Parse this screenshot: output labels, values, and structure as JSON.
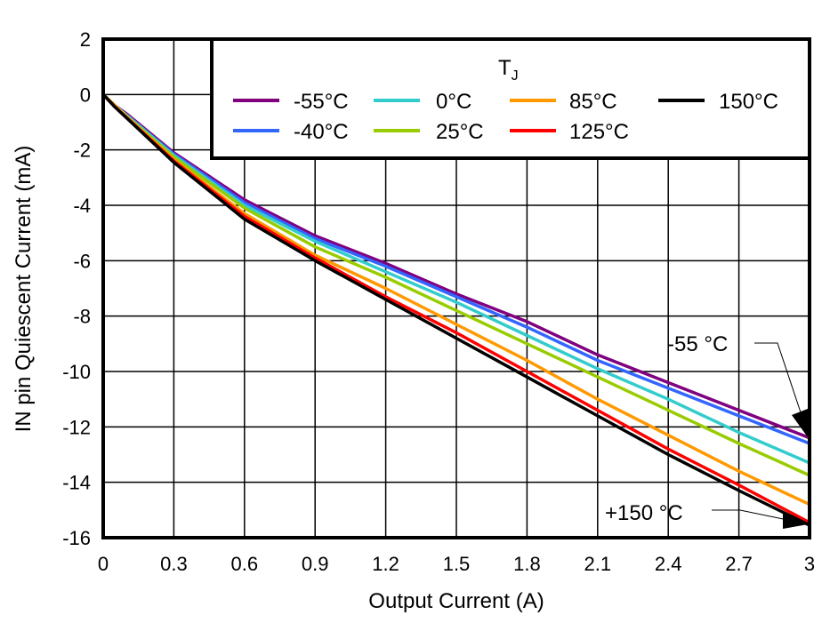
{
  "chart_data": {
    "type": "line",
    "title": "",
    "xlabel": "Output Current (A)",
    "ylabel": "IN pin Quiescent Current (mA)",
    "xlim": [
      0,
      3
    ],
    "ylim": [
      -16,
      2
    ],
    "xticks": [
      "0",
      "0.3",
      "0.6",
      "0.9",
      "1.2",
      "1.5",
      "1.8",
      "2.1",
      "2.4",
      "2.7",
      "3"
    ],
    "yticks": [
      "2",
      "0",
      "-2",
      "-4",
      "-6",
      "-8",
      "-10",
      "-12",
      "-14",
      "-16"
    ],
    "grid": true,
    "legend": {
      "title": "T",
      "title_sub": "J",
      "placement": "top-right"
    },
    "x": [
      0,
      0.05,
      0.1,
      0.3,
      0.6,
      0.9,
      1.2,
      1.5,
      1.8,
      2.1,
      2.4,
      2.7,
      3
    ],
    "series": [
      {
        "name": "-55°C",
        "color": "#800080",
        "values": [
          0,
          -0.4,
          -0.7,
          -2.1,
          -3.8,
          -5.1,
          -6.1,
          -7.2,
          -8.2,
          -9.4,
          -10.4,
          -11.4,
          -12.4
        ]
      },
      {
        "name": "-40°C",
        "color": "#3366ff",
        "values": [
          0,
          -0.4,
          -0.75,
          -2.15,
          -3.9,
          -5.2,
          -6.2,
          -7.3,
          -8.4,
          -9.6,
          -10.6,
          -11.6,
          -12.6
        ]
      },
      {
        "name": "0°C",
        "color": "#33cccc",
        "values": [
          0,
          -0.4,
          -0.75,
          -2.2,
          -4.0,
          -5.3,
          -6.4,
          -7.5,
          -8.7,
          -9.9,
          -11.0,
          -12.2,
          -13.3
        ]
      },
      {
        "name": "25°C",
        "color": "#99cc00",
        "values": [
          0,
          -0.4,
          -0.8,
          -2.25,
          -4.1,
          -5.5,
          -6.6,
          -7.8,
          -9.0,
          -10.2,
          -11.4,
          -12.6,
          -13.75
        ]
      },
      {
        "name": "85°C",
        "color": "#ff9900",
        "values": [
          0,
          -0.4,
          -0.8,
          -2.35,
          -4.3,
          -5.8,
          -7.0,
          -8.3,
          -9.6,
          -11.0,
          -12.3,
          -13.6,
          -14.8
        ]
      },
      {
        "name": "125°C",
        "color": "#ff0000",
        "values": [
          0,
          -0.45,
          -0.85,
          -2.4,
          -4.4,
          -5.9,
          -7.3,
          -8.6,
          -10.0,
          -11.4,
          -12.8,
          -14.1,
          -15.45
        ]
      },
      {
        "name": "150°C",
        "color": "#000000",
        "values": [
          0,
          -0.45,
          -0.85,
          -2.45,
          -4.5,
          -6.0,
          -7.4,
          -8.8,
          -10.2,
          -11.6,
          -13.0,
          -14.3,
          -15.55
        ]
      }
    ],
    "annotations": [
      {
        "text": "-55 °C",
        "x": 3,
        "y": -12.4
      },
      {
        "text": "+150 °C",
        "x": 3,
        "y": -15.55
      }
    ]
  }
}
